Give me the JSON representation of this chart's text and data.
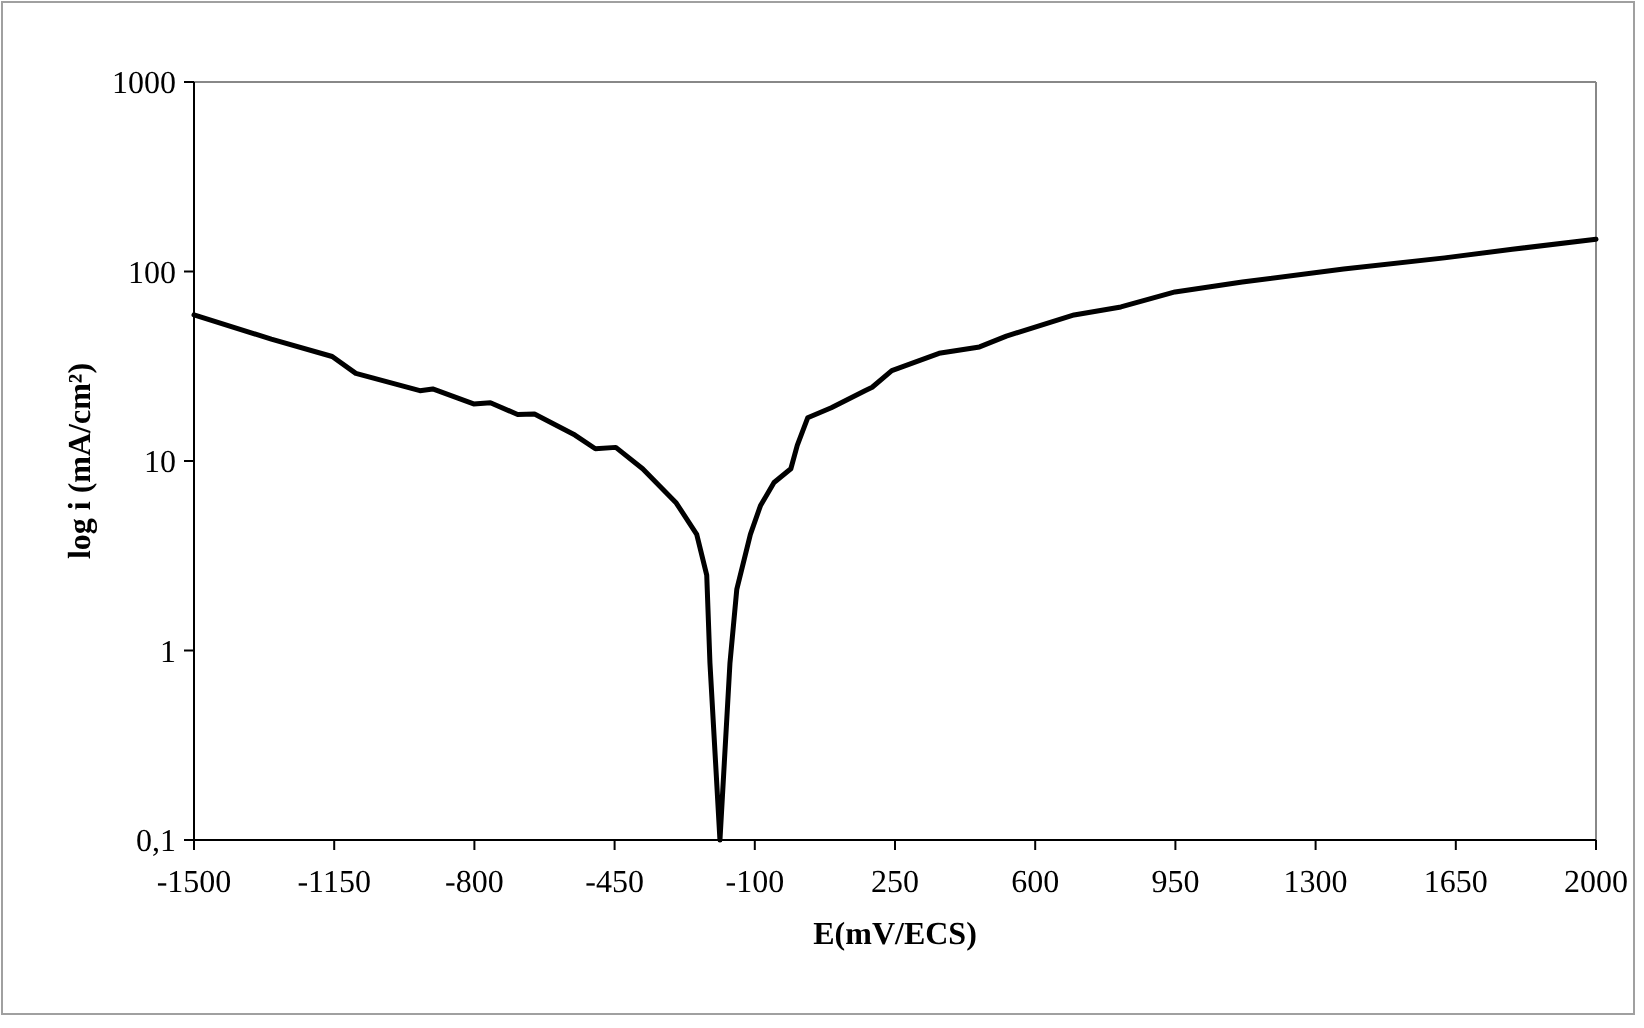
{
  "chart_data": {
    "type": "line",
    "xlabel": "E(mV/ECS)",
    "ylabel": "log i (mA/cm²)",
    "log": "y",
    "grid": false,
    "marker": "none",
    "line_style": "solid",
    "xlim": [
      -1500,
      2000
    ],
    "xticks": [
      -1500,
      -1150,
      -800,
      -450,
      -100,
      250,
      600,
      950,
      1300,
      1650,
      2000
    ],
    "ylim": [
      0.1,
      1000
    ],
    "yticks": [
      {
        "value": 0.1,
        "label": "0,1"
      },
      1,
      10,
      100,
      1000
    ],
    "series": [
      {
        "color": "#000000",
        "x": [
          -1500,
          -1307,
          -1155,
          -1096,
          -936,
          -904,
          -802,
          -760,
          -692,
          -650,
          -549,
          -498,
          -447,
          -380,
          -296,
          -245,
          -220,
          -212,
          -187,
          -162,
          -145,
          -111,
          -86,
          -52,
          -10,
          6,
          32,
          91,
          175,
          193,
          242,
          360,
          461,
          528,
          697,
          814,
          949,
          1117,
          1370,
          1622,
          1791,
          2000
        ],
        "values": [
          59,
          44,
          35.6,
          29,
          23.5,
          24,
          20,
          20.3,
          17.6,
          17.7,
          13.7,
          11.6,
          11.8,
          9.1,
          6,
          4.1,
          2.5,
          0.86,
          0.1,
          0.86,
          2.1,
          4.1,
          5.8,
          7.7,
          9.1,
          12.1,
          16.9,
          19.1,
          23.5,
          24.5,
          30,
          37,
          40,
          45.6,
          59,
          65,
          78,
          88,
          103,
          118,
          131,
          148
        ]
      }
    ]
  }
}
